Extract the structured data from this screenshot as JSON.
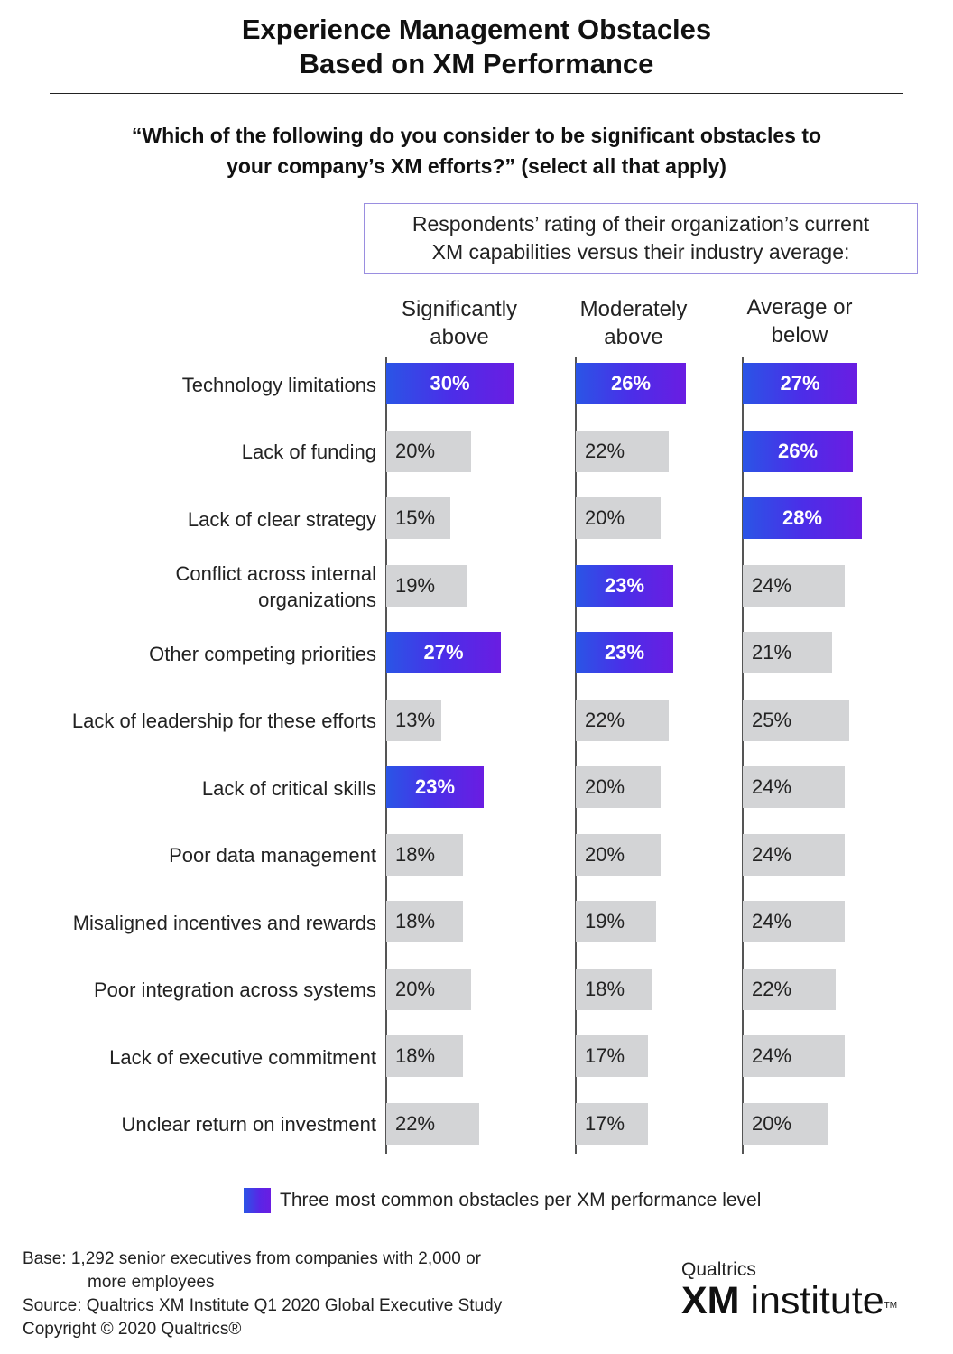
{
  "title": {
    "line1": "Experience Management Obstacles",
    "line2": "Based on XM Performance"
  },
  "question": {
    "line1": "“Which of the following do you consider to be significant obstacles to",
    "line2": "your company’s XM efforts?” (select all that apply)"
  },
  "rating_box": {
    "line1": "Respondents’ rating of their organization’s current",
    "line2": "XM capabilities versus their industry average:"
  },
  "legend": {
    "label": "Three most common obstacles per XM performance level"
  },
  "footer": {
    "base_line1": "Base: 1,292 senior executives from companies with 2,000 or",
    "base_line2": "more employees",
    "source": "Source: Qualtrics XM Institute Q1 2020 Global Executive Study",
    "copyright": "Copyright © 2020 Qualtrics®"
  },
  "brand": {
    "top": "Qualtrics",
    "xm": "XM",
    "rest": " institute",
    "tm": "TM"
  },
  "colors": {
    "gray_bar": "#d3d4d6",
    "highlight_start": "#2a55e6",
    "highlight_end": "#6a1de2",
    "box_border": "#9a8ee0"
  },
  "chart_data": {
    "type": "bar",
    "orientation": "horizontal",
    "value_unit": "%",
    "categories": [
      [
        "Technology limitations"
      ],
      [
        "Lack of funding"
      ],
      [
        "Lack of clear strategy"
      ],
      [
        "Conflict across internal",
        "organizations"
      ],
      [
        "Other competing priorities"
      ],
      [
        "Lack of leadership for these efforts"
      ],
      [
        "Lack of critical skills"
      ],
      [
        "Poor data management"
      ],
      [
        "Misaligned incentives and rewards"
      ],
      [
        "Poor integration across systems"
      ],
      [
        "Lack of executive commitment"
      ],
      [
        "Unclear return on investment"
      ]
    ],
    "series": [
      {
        "name": [
          "Significantly",
          "above"
        ],
        "values": [
          30,
          20,
          15,
          19,
          27,
          13,
          23,
          18,
          18,
          20,
          18,
          22
        ],
        "highlighted": [
          true,
          false,
          false,
          false,
          true,
          false,
          true,
          false,
          false,
          false,
          false,
          false
        ]
      },
      {
        "name": [
          "Moderately",
          "above"
        ],
        "values": [
          26,
          22,
          20,
          23,
          23,
          22,
          20,
          20,
          19,
          18,
          17,
          17
        ],
        "highlighted": [
          true,
          false,
          false,
          true,
          true,
          false,
          false,
          false,
          false,
          false,
          false,
          false
        ]
      },
      {
        "name": [
          "Average or",
          "below"
        ],
        "values": [
          27,
          26,
          28,
          24,
          21,
          25,
          24,
          24,
          24,
          22,
          24,
          20
        ],
        "highlighted": [
          true,
          true,
          true,
          false,
          false,
          false,
          false,
          false,
          false,
          false,
          false,
          false
        ]
      }
    ]
  }
}
